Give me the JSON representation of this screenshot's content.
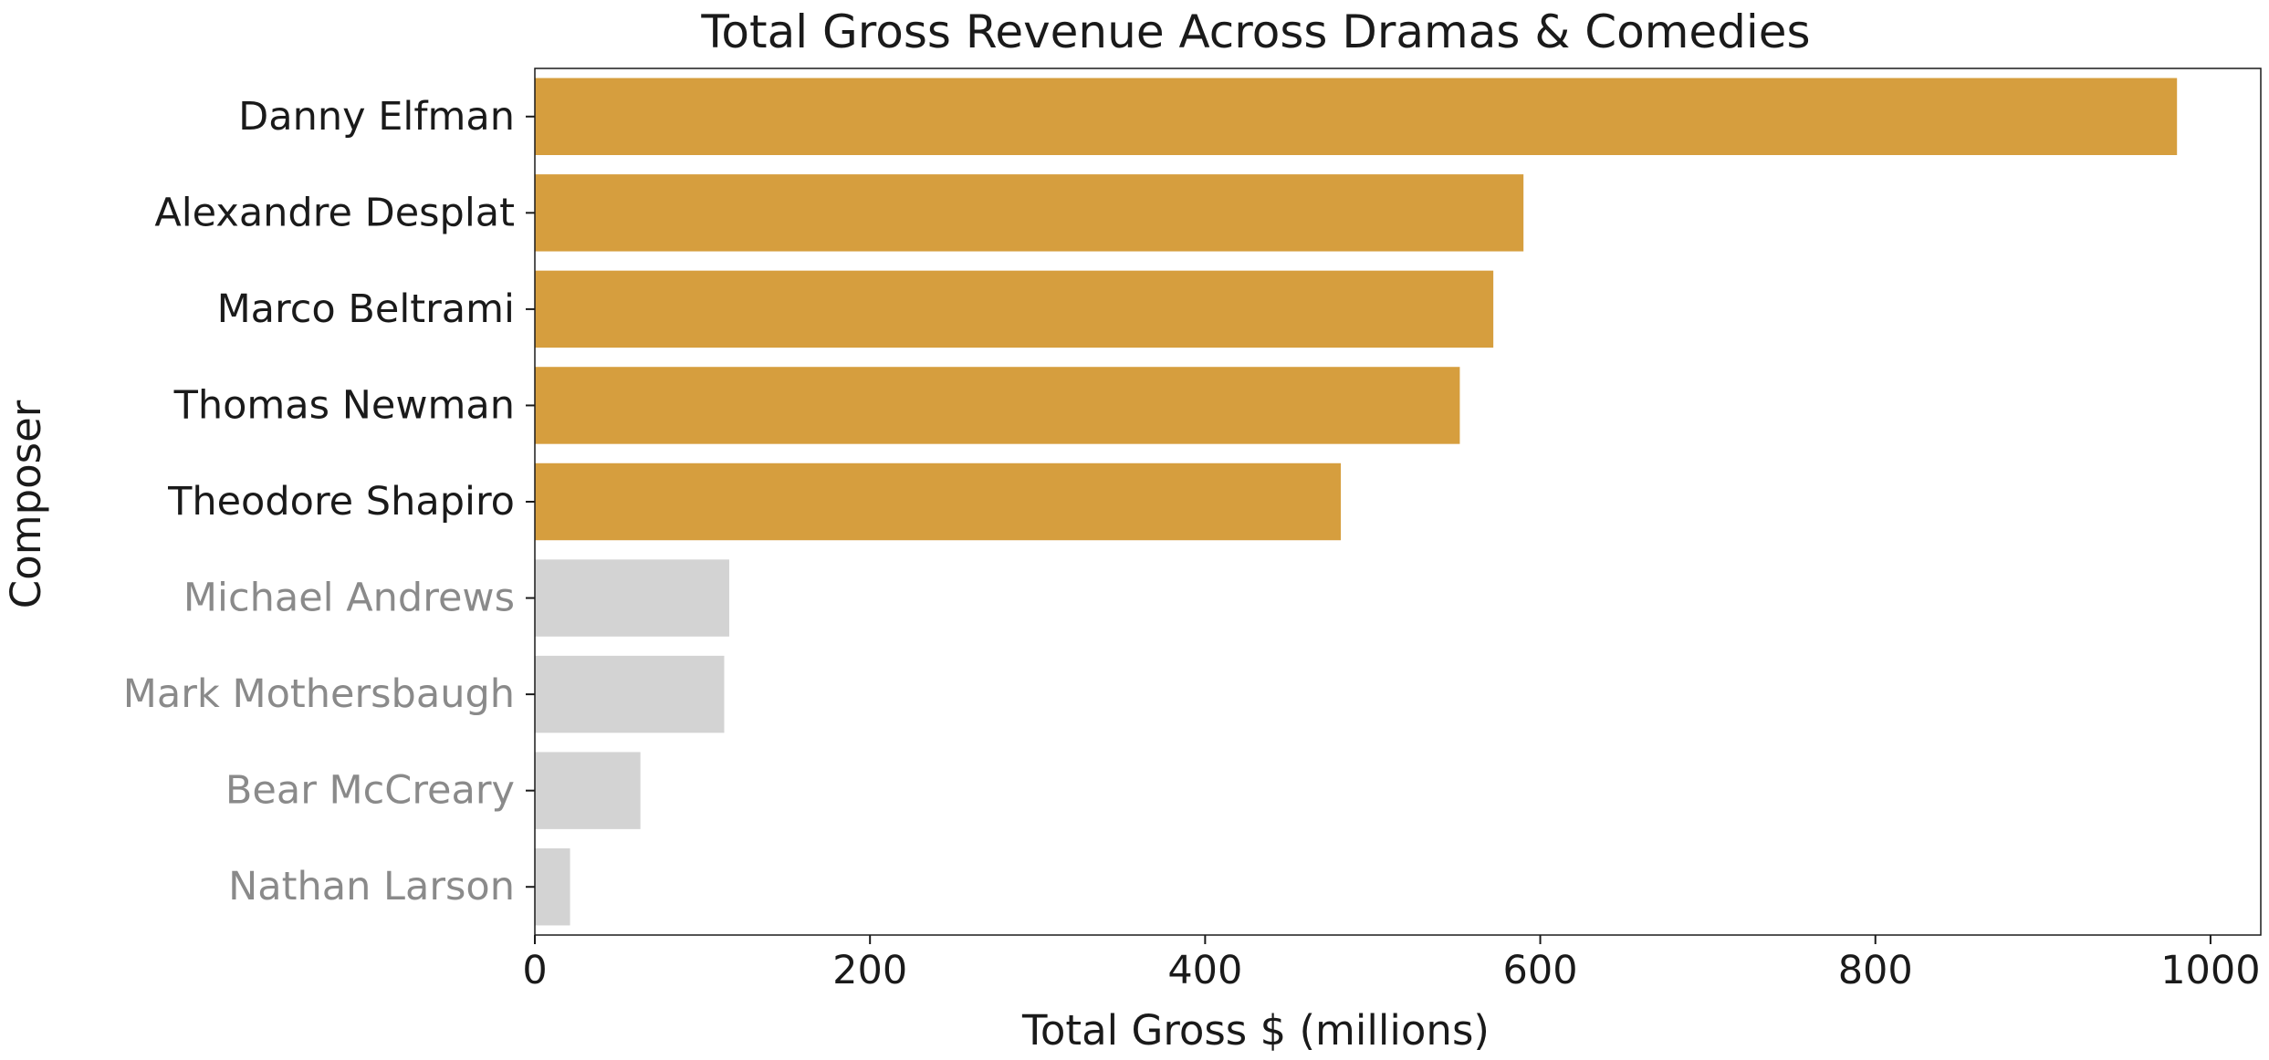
{
  "chart_data": {
    "type": "bar",
    "orientation": "horizontal",
    "title": "Total Gross Revenue Across Dramas & Comedies",
    "xlabel": "Total Gross $ (millions)",
    "ylabel": "Composer",
    "xlim": [
      0,
      1030
    ],
    "xticks": [
      "0",
      "200",
      "400",
      "600",
      "800",
      "1000"
    ],
    "xtick_values": [
      0,
      200,
      400,
      600,
      800,
      1000
    ],
    "categories": [
      "Danny Elfman",
      "Alexandre Desplat",
      "Marco Beltrami",
      "Thomas Newman",
      "Theodore Shapiro",
      "Michael Andrews",
      "Mark Mothersbaugh",
      "Bear McCreary",
      "Nathan Larson"
    ],
    "values": [
      980,
      590,
      572,
      552,
      481,
      116,
      113,
      63,
      21
    ],
    "highlighted": [
      true,
      true,
      true,
      true,
      true,
      false,
      false,
      false,
      false
    ],
    "grid": false,
    "colors": {
      "highlight_bar": "#d69e3e",
      "muted_bar": "#d3d3d3",
      "highlight_label": "#1a1a1a",
      "muted_label": "#8a8a8a",
      "axis": "#1a1a1a"
    }
  }
}
